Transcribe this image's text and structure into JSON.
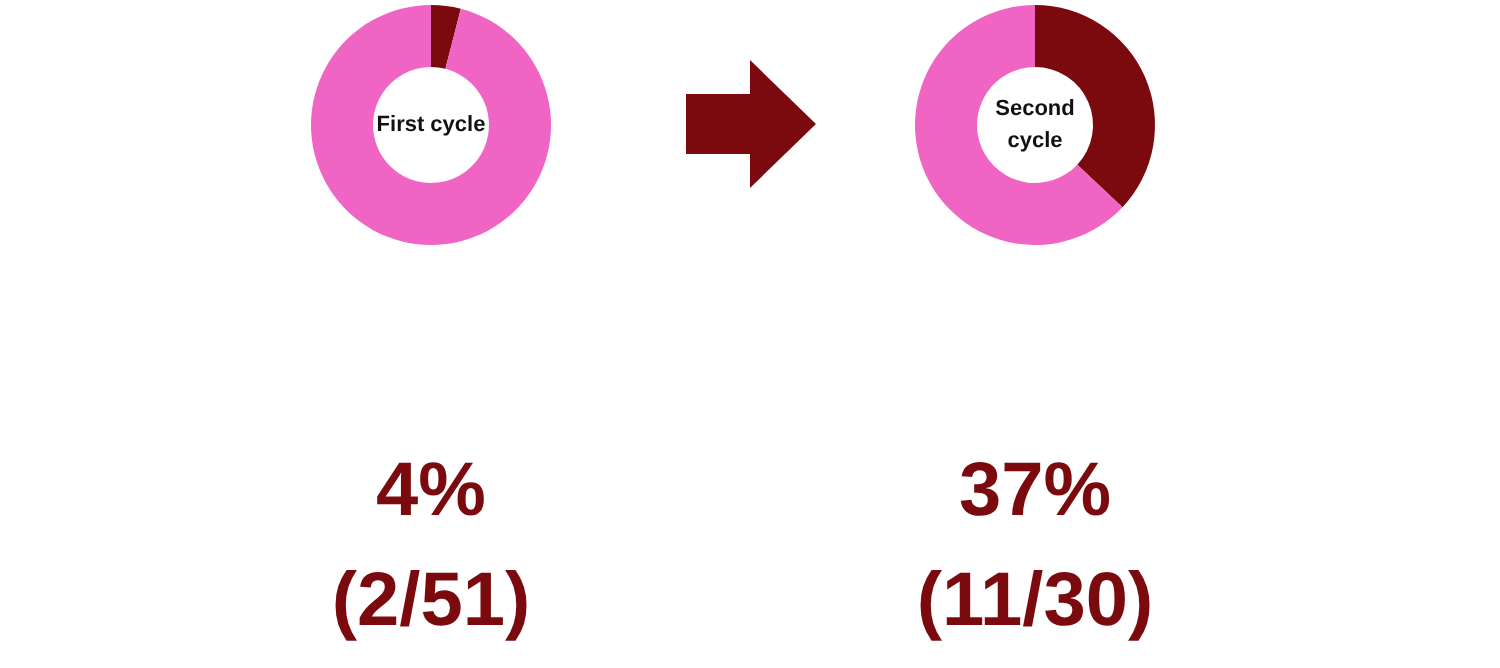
{
  "chart_data": [
    {
      "type": "donut",
      "title": "First cycle",
      "categories": [
        null,
        null
      ],
      "values": [
        4,
        96
      ],
      "colors": [
        "#7a0a0e",
        "#f064c4"
      ],
      "annotations": [
        "4%",
        "(2/51)"
      ]
    },
    {
      "type": "donut",
      "title": "Second cycle",
      "categories": [
        null,
        null
      ],
      "values": [
        37,
        63
      ],
      "colors": [
        "#7a0a0e",
        "#f064c4"
      ],
      "annotations": [
        "37%",
        "(11/30)"
      ]
    }
  ]
}
